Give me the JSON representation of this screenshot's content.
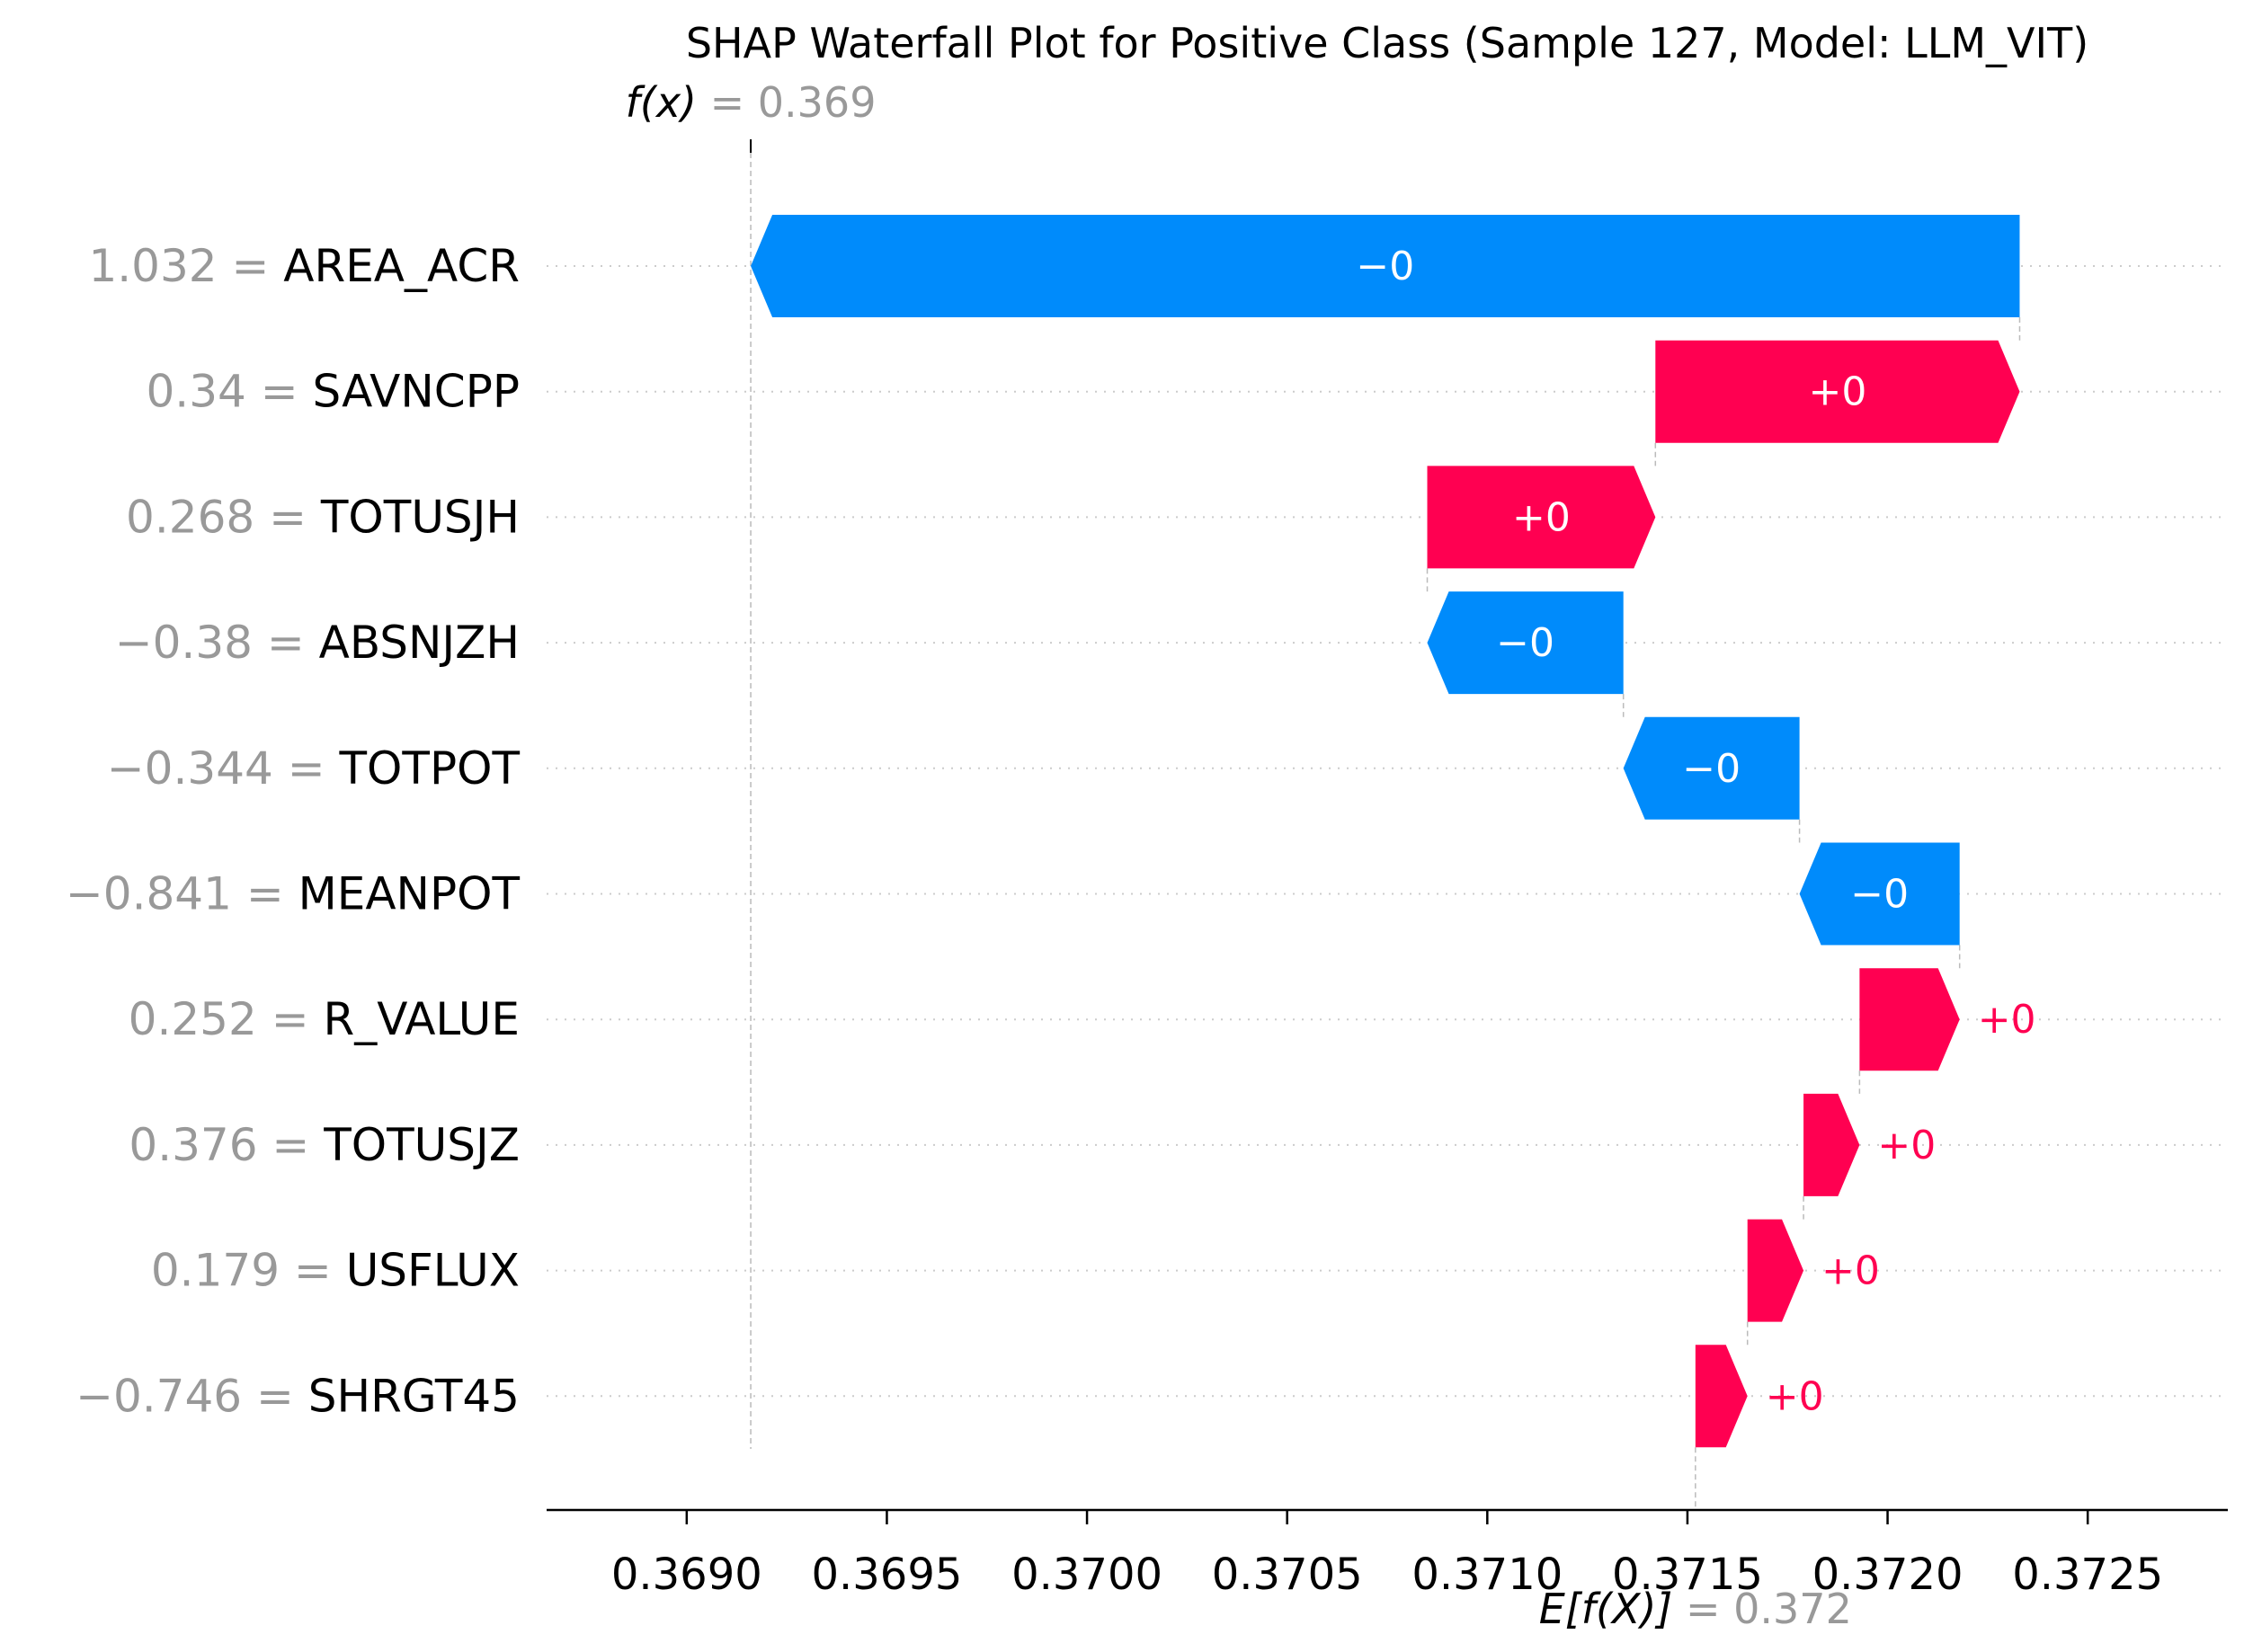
{
  "chart_data": {
    "type": "waterfall",
    "title": "SHAP Waterfall Plot for Positive Class (Sample 127, Model: LLM_VIT)",
    "fx_label": "f(x)",
    "fx_value": "0.369",
    "efx_label": "E[f(X)]",
    "efx_value": "0.372",
    "fx": 0.36916,
    "base": 0.37152,
    "xlim": [
      0.36865,
      0.37285
    ],
    "xticks": [
      "0.3690",
      "0.3695",
      "0.3700",
      "0.3705",
      "0.3710",
      "0.3715",
      "0.3720",
      "0.3725"
    ],
    "xtick_values": [
      0.369,
      0.3695,
      0.37,
      0.3705,
      0.371,
      0.3715,
      0.372,
      0.3725
    ],
    "grid": "horizontal dotted",
    "colors": {
      "positive": "#ff0051",
      "negative": "#008bfb",
      "value_text": "#999999",
      "feature_text": "#000000"
    },
    "features": [
      {
        "value": "1.032",
        "name": "AREA_ACR",
        "start": 0.37233,
        "end": 0.36916,
        "label": "−0"
      },
      {
        "value": "0.34",
        "name": "SAVNCPP",
        "start": 0.37142,
        "end": 0.37233,
        "label": "+0"
      },
      {
        "value": "0.268",
        "name": "TOTUSJH",
        "start": 0.37085,
        "end": 0.37142,
        "label": "+0"
      },
      {
        "value": "−0.38",
        "name": "ABSNJZH",
        "start": 0.37134,
        "end": 0.37085,
        "label": "−0"
      },
      {
        "value": "−0.344",
        "name": "TOTPOT",
        "start": 0.37178,
        "end": 0.37134,
        "label": "−0"
      },
      {
        "value": "−0.841",
        "name": "MEANPOT",
        "start": 0.37218,
        "end": 0.37178,
        "label": "−0"
      },
      {
        "value": "0.252",
        "name": "R_VALUE",
        "start": 0.37193,
        "end": 0.37218,
        "label": "+0"
      },
      {
        "value": "0.376",
        "name": "TOTUSJZ",
        "start": 0.37179,
        "end": 0.37193,
        "label": "+0"
      },
      {
        "value": "0.179",
        "name": "USFLUX",
        "start": 0.37165,
        "end": 0.37179,
        "label": "+0"
      },
      {
        "value": "−0.746",
        "name": "SHRGT45",
        "start": 0.37152,
        "end": 0.37165,
        "label": "+0"
      }
    ]
  }
}
